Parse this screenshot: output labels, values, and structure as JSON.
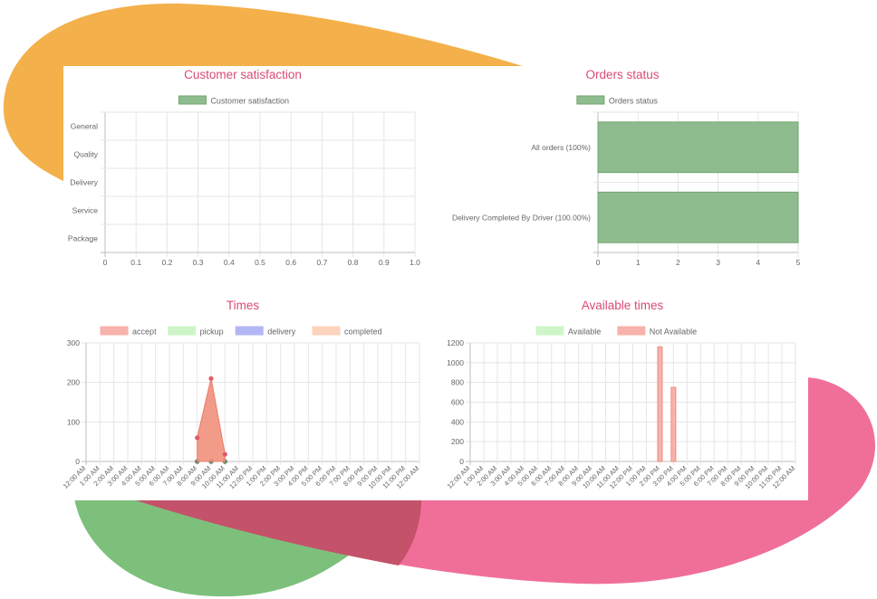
{
  "colors": {
    "title": "#d84c72",
    "blob_orange": "#f4b04a",
    "blob_green": "#7dc07c",
    "blob_pink": "#f06f99",
    "grid": "#e6e6e6",
    "tick_text": "#666666"
  },
  "charts": [
    {
      "id": "satisfaction",
      "type": "bar",
      "orientation": "horizontal",
      "title": "Customer satisfaction",
      "legend": [
        {
          "label": "Customer satisfaction",
          "color": "#8fbc8f"
        }
      ],
      "categories": [
        "General",
        "Quality",
        "Delivery",
        "Service",
        "Package"
      ],
      "values": [
        0,
        0,
        0,
        0,
        0
      ],
      "x_ticks": [
        "0",
        "0.1",
        "0.2",
        "0.3",
        "0.4",
        "0.5",
        "0.6",
        "0.7",
        "0.8",
        "0.9",
        "1.0"
      ],
      "xlim": [
        0,
        1
      ]
    },
    {
      "id": "orders",
      "type": "bar",
      "orientation": "horizontal",
      "title": "Orders status",
      "legend": [
        {
          "label": "Orders status",
          "color": "#8fbc8f"
        }
      ],
      "categories": [
        "All orders (100%)",
        "Delivery Completed By Driver (100.00%)"
      ],
      "values": [
        5,
        5
      ],
      "x_ticks": [
        "0",
        "1",
        "2",
        "3",
        "4",
        "5"
      ],
      "xlim": [
        0,
        5
      ]
    },
    {
      "id": "times",
      "type": "area",
      "title": "Times",
      "legend": [
        {
          "label": "accept",
          "color": "#f7b3ab"
        },
        {
          "label": "pickup",
          "color": "#cdf5c7"
        },
        {
          "label": "delivery",
          "color": "#b3b6f4"
        },
        {
          "label": "completed",
          "color": "#fcd3bd"
        }
      ],
      "categories": [
        "12:00 AM",
        "1:00 AM",
        "2:00 AM",
        "3:00 AM",
        "4:00 AM",
        "5:00 AM",
        "6:00 AM",
        "7:00 AM",
        "8:00 AM",
        "9:00 AM",
        "10:00 AM",
        "11:00 AM",
        "12:00 PM",
        "1:00 PM",
        "2:00 PM",
        "3:00 PM",
        "4:00 PM",
        "5:00 PM",
        "6:00 PM",
        "7:00 PM",
        "8:00 PM",
        "9:00 PM",
        "10:00 PM",
        "11:00 PM",
        "12:00 AM"
      ],
      "series": [
        {
          "name": "accept",
          "values": [
            null,
            null,
            null,
            null,
            null,
            null,
            null,
            null,
            60,
            210,
            18,
            null,
            null,
            null,
            null,
            null,
            null,
            null,
            null,
            null,
            null,
            null,
            null,
            null,
            null
          ]
        },
        {
          "name": "pickup",
          "values": [
            null,
            null,
            null,
            null,
            null,
            null,
            null,
            null,
            0,
            0,
            0,
            null,
            null,
            null,
            null,
            null,
            null,
            null,
            null,
            null,
            null,
            null,
            null,
            null,
            null
          ]
        },
        {
          "name": "delivery",
          "values": [
            null,
            null,
            null,
            null,
            null,
            null,
            null,
            null,
            0,
            0,
            0,
            null,
            null,
            null,
            null,
            null,
            null,
            null,
            null,
            null,
            null,
            null,
            null,
            null,
            null
          ]
        },
        {
          "name": "completed",
          "values": [
            null,
            null,
            null,
            null,
            null,
            null,
            null,
            null,
            0,
            0,
            0,
            null,
            null,
            null,
            null,
            null,
            null,
            null,
            null,
            null,
            null,
            null,
            null,
            null,
            null
          ]
        }
      ],
      "y_ticks": [
        "0",
        "100",
        "200",
        "300"
      ],
      "ylim": [
        0,
        300
      ]
    },
    {
      "id": "available",
      "type": "bar",
      "title": "Available times",
      "legend": [
        {
          "label": "Available",
          "color": "#cdf5c7"
        },
        {
          "label": "Not Available",
          "color": "#f7b3ab"
        }
      ],
      "categories": [
        "12:00 AM",
        "1:00 AM",
        "2:00 AM",
        "3:00 AM",
        "4:00 AM",
        "5:00 AM",
        "6:00 AM",
        "7:00 AM",
        "8:00 AM",
        "9:00 AM",
        "10:00 AM",
        "11:00 AM",
        "12:00 PM",
        "1:00 PM",
        "2:00 PM",
        "3:00 PM",
        "4:00 PM",
        "5:00 PM",
        "6:00 PM",
        "7:00 PM",
        "8:00 PM",
        "9:00 PM",
        "10:00 PM",
        "11:00 PM",
        "12:00 AM"
      ],
      "series": [
        {
          "name": "Available",
          "values": [
            0,
            0,
            0,
            0,
            0,
            0,
            0,
            0,
            0,
            0,
            0,
            0,
            0,
            0,
            0,
            0,
            0,
            0,
            0,
            0,
            0,
            0,
            0,
            0,
            0
          ]
        },
        {
          "name": "Not Available",
          "values": [
            0,
            0,
            0,
            0,
            0,
            0,
            0,
            0,
            0,
            0,
            0,
            0,
            0,
            0,
            1160,
            750,
            0,
            0,
            0,
            0,
            0,
            0,
            0,
            0,
            0
          ]
        }
      ],
      "y_ticks": [
        "0",
        "200",
        "400",
        "600",
        "800",
        "1000",
        "1200"
      ],
      "ylim": [
        0,
        1200
      ]
    }
  ],
  "chart_data": [
    {
      "type": "bar",
      "title": "Customer satisfaction",
      "categories": [
        "General",
        "Quality",
        "Delivery",
        "Service",
        "Package"
      ],
      "series": [
        {
          "name": "Customer satisfaction",
          "values": [
            0,
            0,
            0,
            0,
            0
          ]
        }
      ],
      "xlim": [
        0,
        1
      ],
      "grid": true,
      "legend": "top-center"
    },
    {
      "type": "bar",
      "title": "Orders status",
      "categories": [
        "All orders (100%)",
        "Delivery Completed By Driver (100.00%)"
      ],
      "series": [
        {
          "name": "Orders status",
          "values": [
            5,
            5
          ]
        }
      ],
      "xlim": [
        0,
        5
      ],
      "grid": true,
      "legend": "top-center"
    },
    {
      "type": "area",
      "title": "Times",
      "x": [
        "12:00 AM",
        "1:00 AM",
        "2:00 AM",
        "3:00 AM",
        "4:00 AM",
        "5:00 AM",
        "6:00 AM",
        "7:00 AM",
        "8:00 AM",
        "9:00 AM",
        "10:00 AM",
        "11:00 AM",
        "12:00 PM",
        "1:00 PM",
        "2:00 PM",
        "3:00 PM",
        "4:00 PM",
        "5:00 PM",
        "6:00 PM",
        "7:00 PM",
        "8:00 PM",
        "9:00 PM",
        "10:00 PM",
        "11:00 PM",
        "12:00 AM"
      ],
      "series": [
        {
          "name": "accept",
          "values": [
            null,
            null,
            null,
            null,
            null,
            null,
            null,
            null,
            60,
            210,
            18,
            null,
            null,
            null,
            null,
            null,
            null,
            null,
            null,
            null,
            null,
            null,
            null,
            null,
            null
          ]
        },
        {
          "name": "pickup",
          "values": [
            null,
            null,
            null,
            null,
            null,
            null,
            null,
            null,
            0,
            0,
            0,
            null,
            null,
            null,
            null,
            null,
            null,
            null,
            null,
            null,
            null,
            null,
            null,
            null,
            null
          ]
        },
        {
          "name": "delivery",
          "values": [
            null,
            null,
            null,
            null,
            null,
            null,
            null,
            null,
            0,
            0,
            0,
            null,
            null,
            null,
            null,
            null,
            null,
            null,
            null,
            null,
            null,
            null,
            null,
            null,
            null
          ]
        },
        {
          "name": "completed",
          "values": [
            null,
            null,
            null,
            null,
            null,
            null,
            null,
            null,
            0,
            0,
            0,
            null,
            null,
            null,
            null,
            null,
            null,
            null,
            null,
            null,
            null,
            null,
            null,
            null,
            null
          ]
        }
      ],
      "ylim": [
        0,
        300
      ],
      "grid": true,
      "legend": "top-center"
    },
    {
      "type": "bar",
      "title": "Available times",
      "categories": [
        "12:00 AM",
        "1:00 AM",
        "2:00 AM",
        "3:00 AM",
        "4:00 AM",
        "5:00 AM",
        "6:00 AM",
        "7:00 AM",
        "8:00 AM",
        "9:00 AM",
        "10:00 AM",
        "11:00 AM",
        "12:00 PM",
        "1:00 PM",
        "2:00 PM",
        "3:00 PM",
        "4:00 PM",
        "5:00 PM",
        "6:00 PM",
        "7:00 PM",
        "8:00 PM",
        "9:00 PM",
        "10:00 PM",
        "11:00 PM",
        "12:00 AM"
      ],
      "series": [
        {
          "name": "Available",
          "values": [
            0,
            0,
            0,
            0,
            0,
            0,
            0,
            0,
            0,
            0,
            0,
            0,
            0,
            0,
            0,
            0,
            0,
            0,
            0,
            0,
            0,
            0,
            0,
            0,
            0
          ]
        },
        {
          "name": "Not Available",
          "values": [
            0,
            0,
            0,
            0,
            0,
            0,
            0,
            0,
            0,
            0,
            0,
            0,
            0,
            0,
            1160,
            750,
            0,
            0,
            0,
            0,
            0,
            0,
            0,
            0,
            0
          ]
        }
      ],
      "ylim": [
        0,
        1200
      ],
      "grid": true,
      "legend": "top-center"
    }
  ]
}
